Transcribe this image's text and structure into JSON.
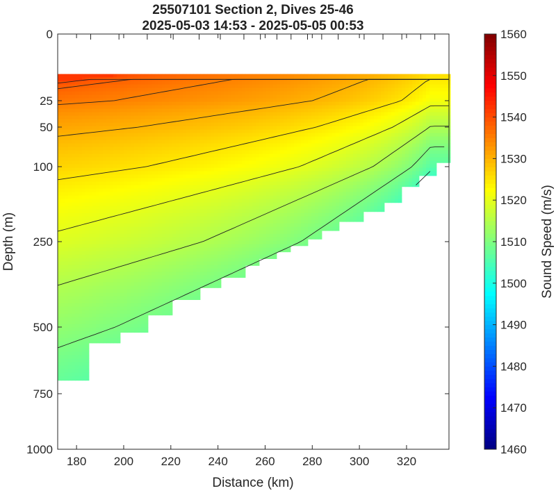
{
  "chart_data": {
    "type": "heatmap",
    "title": "25507101 Section 2, Dives 25-46",
    "subtitle": "2025-05-03 14:53 - 2025-05-05 00:53",
    "xlabel": "Distance (km)",
    "ylabel": "Depth (m)",
    "colorbar_label": "Sound Speed (m/s)",
    "xlim": [
      172,
      338
    ],
    "ylim": [
      0,
      1000
    ],
    "x_ticks": [
      180,
      200,
      220,
      240,
      260,
      280,
      300,
      320
    ],
    "y_ticks": [
      0,
      25,
      50,
      100,
      250,
      500,
      750,
      1000
    ],
    "colorbar_range": [
      1460,
      1560
    ],
    "colorbar_ticks": [
      1460,
      1470,
      1480,
      1490,
      1500,
      1510,
      1520,
      1530,
      1540,
      1550,
      1560
    ],
    "contour_levels": [
      1505,
      1510,
      1515,
      1520,
      1525,
      1530,
      1535,
      1538,
      1540
    ],
    "dives": [
      {
        "x": 172,
        "max_depth": 700
      },
      {
        "x": 186,
        "max_depth": 560
      },
      {
        "x": 198,
        "max_depth": 520
      },
      {
        "x": 210,
        "max_depth": 465
      },
      {
        "x": 221,
        "max_depth": 420
      },
      {
        "x": 232,
        "max_depth": 385
      },
      {
        "x": 241,
        "max_depth": 355
      },
      {
        "x": 251,
        "max_depth": 320
      },
      {
        "x": 258,
        "max_depth": 300
      },
      {
        "x": 265,
        "max_depth": 280
      },
      {
        "x": 271,
        "max_depth": 262
      },
      {
        "x": 278,
        "max_depth": 245
      },
      {
        "x": 284,
        "max_depth": 228
      },
      {
        "x": 291,
        "max_depth": 210
      },
      {
        "x": 302,
        "max_depth": 190
      },
      {
        "x": 310,
        "max_depth": 172
      },
      {
        "x": 318,
        "max_depth": 140
      },
      {
        "x": 326,
        "max_depth": 118
      },
      {
        "x": 332,
        "max_depth": 95
      },
      {
        "x": 338,
        "max_depth": 75
      }
    ]
  }
}
